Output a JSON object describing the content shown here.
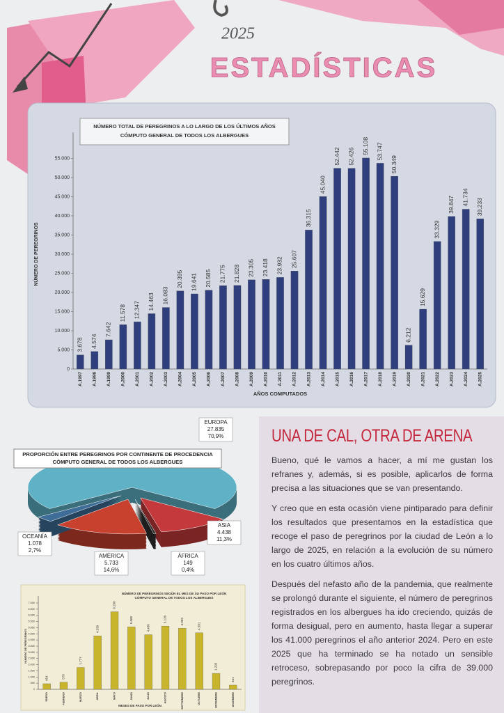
{
  "header": {
    "year": "2025",
    "title": "ESTADÍSTICAS"
  },
  "chart_data": [
    {
      "type": "bar",
      "title": "NÚMERO TOTAL DE PEREGRINOS A LO LARGO DE LOS ÚLTIMOS AÑOS",
      "subtitle": "CÓMPUTO GENERAL DE TODOS LOS ALBERGUES",
      "y_label": "NÚMERO DE PEREGRINOS",
      "x_label": "AÑOS COMPUTADOS",
      "categories": [
        "A.1997",
        "A.1998",
        "A.1999",
        "A.2000",
        "A.2001",
        "A.2002",
        "A.2003",
        "A.2004",
        "A.2005",
        "A.2006",
        "A.2007",
        "A.2008",
        "A.2009",
        "A.2010",
        "A.2011",
        "A.2012",
        "A.2013",
        "A.2014",
        "A.2015",
        "A.2016",
        "A.2017",
        "A.2018",
        "A.2019",
        "A.2020",
        "A.2021",
        "A.2022",
        "A.2023",
        "A.2024",
        "A.2025"
      ],
      "values": [
        3678,
        4574,
        7642,
        11578,
        12347,
        14463,
        16083,
        20395,
        19641,
        20585,
        21775,
        21828,
        23305,
        23418,
        23932,
        25607,
        36315,
        45040,
        52442,
        52426,
        55108,
        53747,
        50349,
        6212,
        15629,
        33329,
        39847,
        41734,
        39233
      ],
      "value_labels": [
        "3.678",
        "4.574",
        "7.642",
        "11.578",
        "12.347",
        "14.463",
        "16.083",
        "20.395",
        "19.641",
        "20.585",
        "21.775",
        "21.828",
        "23.305",
        "23.418",
        "23.932",
        "25.607",
        "36.315",
        "45.040",
        "52.442",
        "52.426",
        "55.108",
        "53.747",
        "50.349",
        "6.212",
        "15.629",
        "33.329",
        "39.847",
        "41.734",
        "39.233"
      ],
      "color": "#2f3f7e",
      "ylim": [
        0,
        60000
      ],
      "yticks": [
        0,
        {
          "value": 5000,
          "label": "5.000"
        },
        {
          "value": 10000,
          "label": "10.000"
        },
        {
          "value": 15000,
          "label": "15.000"
        },
        {
          "value": 20000,
          "label": "20.000"
        },
        {
          "value": 25000,
          "label": "25.000"
        },
        {
          "value": 30000,
          "label": "30.000"
        },
        {
          "value": 35000,
          "label": "35.000"
        },
        {
          "value": 40000,
          "label": "40.000"
        },
        {
          "value": 45000,
          "label": "45.000"
        },
        {
          "value": 50000,
          "label": "50.000"
        },
        {
          "value": 55000,
          "label": "55.000"
        }
      ],
      "grid": false
    },
    {
      "type": "pie",
      "title": "PROPORCIÓN ENTRE PEREGRINOS POR CONTINENTE DE PROCEDENCIA",
      "subtitle": "CÓMPUTO GENERAL DE TODOS LOS ALBERGUES",
      "categories": [
        "EUROPA",
        "ASIA",
        "ÁFRICA",
        "AMÉRICA",
        "OCEANÍA"
      ],
      "values": [
        27835,
        4438,
        149,
        5733,
        1078
      ],
      "value_labels": [
        "27.835",
        "4.438",
        "149",
        "5.733",
        "1.078"
      ],
      "percentages": [
        70.9,
        11.3,
        0.4,
        14.6,
        2.7
      ],
      "percentage_labels": [
        "70,9%",
        "11,3%",
        "0,4%",
        "14,6%",
        "2,7%"
      ],
      "colors": [
        "#5fb1c6",
        "#c43a3c",
        "#2e2e2e",
        "#c8412f",
        "#3e6e98"
      ]
    },
    {
      "type": "bar",
      "title": "NÚMERO DE PEREGRINOS SEGÚN EL MES DE SU PASO POR LEÓN",
      "subtitle": "CÓMPUTO GENERAL DE TODOS LOS ALBERGUES",
      "y_label": "NÚMERO DE PEREGRINOS",
      "x_label": "MESES DE PASO POR LEÓN",
      "categories": [
        "ENERO",
        "FEBRERO",
        "MARZO",
        "ABRIL",
        "MAYO",
        "JUNIO",
        "JULIO",
        "AGOSTO",
        "SEPTIEMBRE",
        "OCTUBRE",
        "NOVIEMBRE",
        "DICIEMBRE"
      ],
      "values": [
        454,
        578,
        1777,
        4339,
        6290,
        5068,
        4430,
        5130,
        4950,
        4581,
        1295,
        341
      ],
      "value_labels": [
        "454",
        "578",
        "1.777",
        "4.339",
        "6.290",
        "5.068",
        "4.430",
        "5.130",
        "4.950",
        "4.581",
        "1.295",
        "341"
      ],
      "color": "#c9b52c",
      "ylim": [
        0,
        7000
      ],
      "yticks": [
        0,
        500,
        {
          "value": 1000,
          "label": "1.000"
        },
        {
          "value": 1500,
          "label": "1.500"
        },
        {
          "value": 2000,
          "label": "2.000"
        },
        {
          "value": 2500,
          "label": "2.500"
        },
        {
          "value": 3000,
          "label": "3.000"
        },
        {
          "value": 3500,
          "label": "3.500"
        },
        {
          "value": 4000,
          "label": "4.000"
        },
        {
          "value": 4500,
          "label": "4.500"
        },
        {
          "value": 5000,
          "label": "5.000"
        },
        {
          "value": 5500,
          "label": "5.500"
        },
        {
          "value": 6000,
          "label": "6.000"
        },
        {
          "value": 6500,
          "label": "6.500"
        },
        {
          "value": 7000,
          "label": "7.000"
        }
      ],
      "grid": false
    }
  ],
  "article": {
    "heading": "UNA DE CAL, OTRA DE ARENA",
    "paragraphs": [
      "Bueno, qué le vamos a hacer, a mí me gustan los refranes y, además, si es posible, aplicarlos de forma precisa a las situaciones que se van presentando.",
      "Y creo que en esta ocasión viene pintiparado para definir los resultados que presentamos en la estadística que recoge el paso de peregrinos por la ciudad de León a lo largo de 2025, en relación a la evolución de su número en los cuatro últimos años.",
      "Después del nefasto año de la pandemia, que realmente se prolongó durante el siguiente, el número de peregrinos registrados en los albergues ha ido creciendo, quizás de forma desigual, pero en aumento, hasta llegar a superar los 41.000 peregrinos el año anterior 2024. Pero en este 2025 que ha terminado se ha notado un sensible retroceso, sobrepasando por poco la cifra de 39.000 peregrinos."
    ]
  }
}
